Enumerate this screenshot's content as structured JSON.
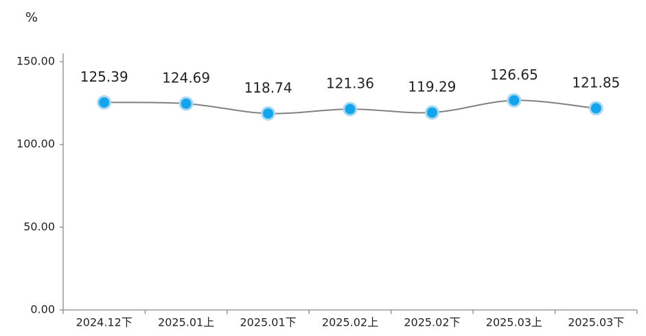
{
  "chart_data": {
    "type": "line",
    "ylabel": "%",
    "categories": [
      "2024.12下",
      "2025.01上",
      "2025.01下",
      "2025.02上",
      "2025.02下",
      "2025.03上",
      "2025.03下"
    ],
    "values": [
      125.39,
      124.69,
      118.74,
      121.36,
      119.29,
      126.65,
      121.85
    ],
    "color": "#808080",
    "marker_color": "#13a4ec",
    "ylim": [
      0,
      150
    ],
    "yticks": [
      {
        "value": 0,
        "label": "0.00"
      },
      {
        "value": 50,
        "label": "50.00"
      },
      {
        "value": 100,
        "label": "100.00"
      },
      {
        "value": 150,
        "label": "150.00"
      }
    ],
    "grid": false
  }
}
